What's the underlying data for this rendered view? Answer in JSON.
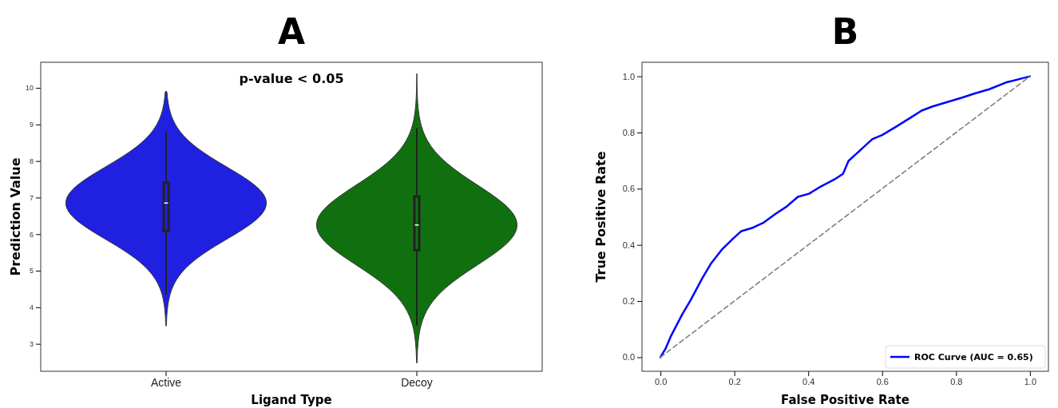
{
  "chart_data": [
    {
      "type": "box",
      "title": "A",
      "xlabel": "Ligand Type",
      "ylabel": "Prediction Value",
      "annotations": [
        "p-value < 0.05"
      ],
      "categories": [
        "Active",
        "Decoy"
      ],
      "boxes": [
        {
          "low": 4.35,
          "q1": 6.08,
          "median": 6.85,
          "q3": 7.41,
          "high": 8.8
        },
        {
          "low": 3.5,
          "q1": 5.56,
          "median": 6.25,
          "q3": 7.03,
          "high": 8.9
        }
      ],
      "colors": [
        "#2020e0",
        "#107010"
      ],
      "ylim": [
        2.25,
        10.7
      ],
      "yticks": [
        3,
        4,
        5,
        6,
        7,
        8,
        9,
        10
      ],
      "grid": false,
      "legend": false
    },
    {
      "type": "line",
      "title": "B",
      "xlabel": "False Positive Rate",
      "ylabel": "True Positive Rate",
      "series": [
        {
          "name": "ROC Curve (AUC = 0.65)",
          "color": "#0000ff",
          "x": [
            0,
            0.014,
            0.029,
            0.059,
            0.082,
            0.113,
            0.136,
            0.166,
            0.197,
            0.219,
            0.25,
            0.28,
            0.311,
            0.341,
            0.372,
            0.402,
            0.433,
            0.471,
            0.494,
            0.509,
            0.539,
            0.573,
            0.6,
            0.638,
            0.676,
            0.707,
            0.737,
            0.775,
            0.813,
            0.851,
            0.89,
            0.935,
            1
          ],
          "values": [
            0,
            0.031,
            0.077,
            0.153,
            0.204,
            0.281,
            0.332,
            0.383,
            0.423,
            0.449,
            0.461,
            0.48,
            0.51,
            0.536,
            0.571,
            0.582,
            0.607,
            0.633,
            0.653,
            0.699,
            0.735,
            0.776,
            0.791,
            0.821,
            0.852,
            0.878,
            0.893,
            0.908,
            0.923,
            0.939,
            0.954,
            0.978,
            1
          ]
        },
        {
          "color": "#808080",
          "line_style": "dashed",
          "x": [
            0,
            1
          ],
          "values": [
            0,
            1
          ]
        }
      ],
      "xlim": [
        -0.05,
        1.05
      ],
      "ylim": [
        -0.05,
        1.05
      ],
      "xticks": [
        {
          "value": 0,
          "label": "0.0"
        },
        {
          "value": 0.2,
          "label": "0.2"
        },
        {
          "value": 0.4,
          "label": "0.4"
        },
        {
          "value": 0.6,
          "label": "0.6"
        },
        {
          "value": 0.8,
          "label": "0.8"
        },
        {
          "value": 1,
          "label": "1.0"
        }
      ],
      "yticks": [
        {
          "value": 0,
          "label": "0.0"
        },
        {
          "value": 0.2,
          "label": "0.2"
        },
        {
          "value": 0.4,
          "label": "0.4"
        },
        {
          "value": 0.6,
          "label": "0.6"
        },
        {
          "value": 0.8,
          "label": "0.8"
        },
        {
          "value": 1,
          "label": "1.0"
        }
      ],
      "grid": false,
      "legend": "bottom right",
      "marker": "none"
    }
  ]
}
